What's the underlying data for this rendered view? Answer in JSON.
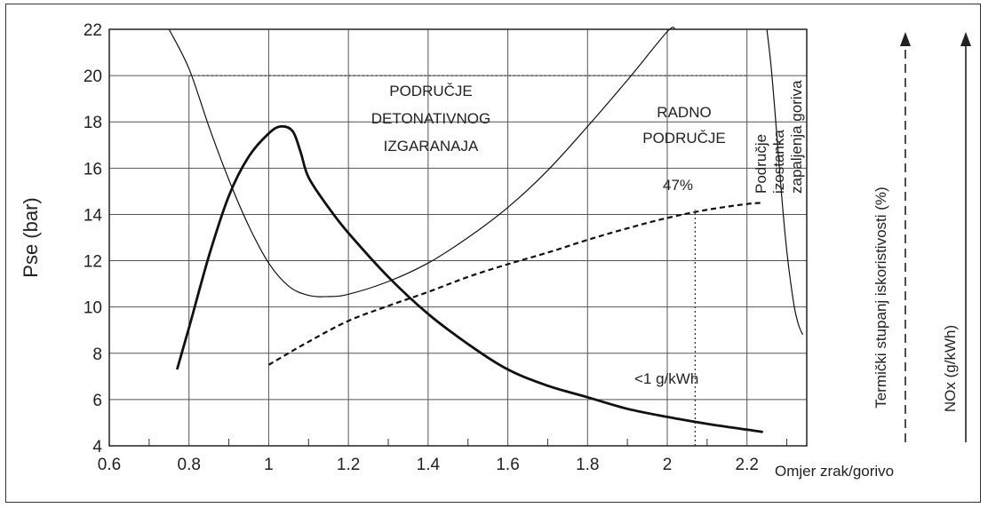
{
  "chart_data": {
    "type": "line",
    "xlabel": "Omjer zrak/gorivo",
    "ylabel": "Pse (bar)",
    "xlim": [
      0.6,
      2.35
    ],
    "ylim": [
      4,
      22
    ],
    "xticks": [
      "0.6",
      "0.8",
      "1",
      "1.2",
      "1.4",
      "1.6",
      "1.8",
      "2",
      "2.2"
    ],
    "yticks": [
      "4",
      "6",
      "8",
      "10",
      "12",
      "14",
      "16",
      "18",
      "20",
      "22"
    ],
    "grid": true,
    "right_axis_labels": {
      "efficiency": "Termički stupanj iskoristivosti (%)",
      "nox": "NOx (g/kWh)"
    },
    "annotations": {
      "knock_region": [
        "PODRUČJE",
        "DETONATIVNOG",
        "IZGARANAJA"
      ],
      "working_region": [
        "RADNO",
        "PODRUČJE"
      ],
      "misfire_region": [
        "Područje",
        "izostanka",
        "zapaljenja goriva"
      ],
      "efficiency_value": "47%",
      "nox_value": "<1 g/kWh"
    },
    "series": [
      {
        "id": "knock_limit",
        "style": "thin",
        "x": [
          0.75,
          0.8,
          0.85,
          0.9,
          0.95,
          1.0,
          1.05,
          1.1,
          1.15,
          1.2,
          1.3,
          1.4,
          1.5,
          1.6,
          1.7,
          1.8,
          1.9,
          2.0,
          2.02
        ],
        "y": [
          22,
          20.3,
          17.8,
          15.5,
          13.5,
          11.9,
          10.9,
          10.5,
          10.45,
          10.55,
          11.1,
          11.9,
          13.0,
          14.3,
          15.9,
          17.8,
          19.8,
          21.9,
          22
        ]
      },
      {
        "id": "misfire_limit",
        "style": "thin",
        "x": [
          2.25,
          2.26,
          2.27,
          2.28,
          2.29,
          2.3,
          2.31,
          2.32,
          2.33,
          2.34
        ],
        "y": [
          22,
          20.5,
          18.5,
          16.3,
          14.2,
          12.4,
          11.0,
          9.9,
          9.2,
          8.8
        ]
      },
      {
        "id": "nox",
        "style": "thick",
        "x": [
          0.77,
          0.8,
          0.85,
          0.9,
          0.95,
          1.0,
          1.03,
          1.06,
          1.08,
          1.1,
          1.15,
          1.2,
          1.3,
          1.4,
          1.5,
          1.6,
          1.7,
          1.8,
          1.9,
          2.0,
          2.1,
          2.2,
          2.24
        ],
        "y": [
          7.3,
          9.1,
          12.2,
          14.8,
          16.5,
          17.5,
          17.8,
          17.6,
          16.7,
          15.6,
          14.3,
          13.2,
          11.3,
          9.7,
          8.4,
          7.3,
          6.6,
          6.1,
          5.6,
          5.25,
          4.95,
          4.7,
          4.6
        ]
      },
      {
        "id": "efficiency",
        "style": "dashed",
        "x": [
          1.0,
          1.1,
          1.2,
          1.3,
          1.4,
          1.5,
          1.6,
          1.7,
          1.8,
          1.9,
          2.0,
          2.1,
          2.2,
          2.24
        ],
        "y": [
          7.5,
          8.5,
          9.4,
          10.05,
          10.65,
          11.3,
          11.85,
          12.35,
          12.9,
          13.4,
          13.85,
          14.2,
          14.45,
          14.5
        ]
      }
    ],
    "reference_lines": [
      {
        "id": "dotted_20bar",
        "axis": "y",
        "value": 20,
        "from": 0.8,
        "to": 2.2
      },
      {
        "id": "dotted_efficiency_vertical",
        "axis": "x",
        "value": 2.07,
        "from": 4,
        "to": 14.2
      }
    ]
  }
}
